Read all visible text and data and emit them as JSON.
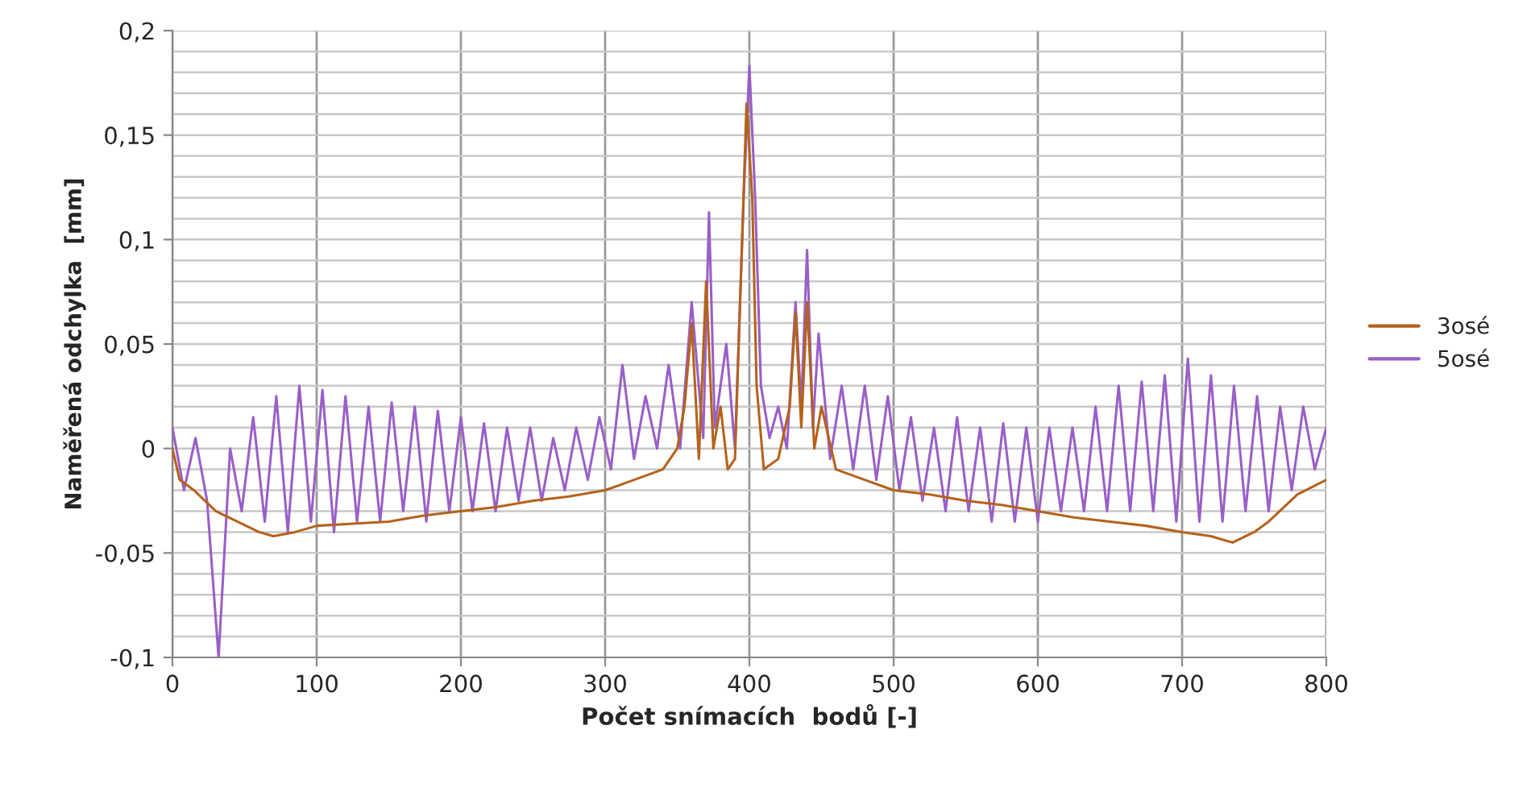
{
  "chart_data": {
    "type": "line",
    "xlabel": "Počet snímacích  bodů [-]",
    "ylabel": "Naměřená odchylka  [mm]",
    "xlim": [
      0,
      800
    ],
    "xticks": [
      0,
      100,
      200,
      300,
      400,
      500,
      600,
      700,
      800
    ],
    "ylim": [
      -0.1,
      0.2
    ],
    "yticks": [
      {
        "value": -0.1,
        "label": "-0,1"
      },
      {
        "value": -0.05,
        "label": "-0,05"
      },
      {
        "value": 0,
        "label": "0"
      },
      {
        "value": 0.05,
        "label": "0,05"
      },
      {
        "value": 0.1,
        "label": "0,1"
      },
      {
        "value": 0.15,
        "label": "0,15"
      },
      {
        "value": 0.2,
        "label": "0,2"
      }
    ],
    "grid": true,
    "legend": "right",
    "marker": "none",
    "line_style": "solid",
    "series": [
      {
        "name": "3osé",
        "color": "#b5621b",
        "x": [
          0,
          5,
          15,
          30,
          45,
          60,
          70,
          85,
          100,
          125,
          150,
          175,
          200,
          225,
          250,
          275,
          300,
          320,
          340,
          350,
          355,
          360,
          365,
          370,
          375,
          380,
          385,
          390,
          395,
          398,
          402,
          405,
          410,
          420,
          428,
          432,
          436,
          440,
          445,
          450,
          460,
          480,
          500,
          525,
          550,
          575,
          600,
          625,
          650,
          675,
          700,
          720,
          735,
          750,
          760,
          780,
          800
        ],
        "values": [
          0,
          -0.015,
          -0.02,
          -0.03,
          -0.035,
          -0.04,
          -0.042,
          -0.04,
          -0.037,
          -0.036,
          -0.035,
          -0.032,
          -0.03,
          -0.028,
          -0.025,
          -0.023,
          -0.02,
          -0.015,
          -0.01,
          0.0,
          0.02,
          0.06,
          -0.005,
          0.08,
          0.0,
          0.02,
          -0.01,
          -0.005,
          0.1,
          0.165,
          0.12,
          0.03,
          -0.01,
          -0.005,
          0.02,
          0.065,
          0.01,
          0.07,
          0.0,
          0.02,
          -0.01,
          -0.015,
          -0.02,
          -0.022,
          -0.025,
          -0.027,
          -0.03,
          -0.033,
          -0.035,
          -0.037,
          -0.04,
          -0.042,
          -0.045,
          -0.04,
          -0.035,
          -0.022,
          -0.015
        ]
      },
      {
        "name": "5osé",
        "color": "#9a5fc7",
        "x": [
          0,
          8,
          16,
          24,
          32,
          40,
          48,
          56,
          64,
          72,
          80,
          88,
          96,
          104,
          112,
          120,
          128,
          136,
          144,
          152,
          160,
          168,
          176,
          184,
          192,
          200,
          208,
          216,
          224,
          232,
          240,
          248,
          256,
          264,
          272,
          280,
          288,
          296,
          304,
          312,
          320,
          328,
          336,
          344,
          352,
          360,
          368,
          372,
          376,
          384,
          390,
          396,
          400,
          404,
          408,
          414,
          420,
          426,
          432,
          436,
          440,
          444,
          448,
          456,
          464,
          472,
          480,
          488,
          496,
          504,
          512,
          520,
          528,
          536,
          544,
          552,
          560,
          568,
          576,
          584,
          592,
          600,
          608,
          616,
          624,
          632,
          640,
          648,
          656,
          664,
          672,
          680,
          688,
          696,
          704,
          712,
          720,
          728,
          736,
          744,
          752,
          760,
          768,
          776,
          784,
          792,
          800
        ],
        "values": [
          0.01,
          -0.02,
          0.005,
          -0.025,
          -0.1,
          0.0,
          -0.03,
          0.015,
          -0.035,
          0.025,
          -0.04,
          0.03,
          -0.035,
          0.028,
          -0.04,
          0.025,
          -0.035,
          0.02,
          -0.035,
          0.022,
          -0.03,
          0.02,
          -0.035,
          0.018,
          -0.03,
          0.015,
          -0.03,
          0.012,
          -0.03,
          0.01,
          -0.025,
          0.01,
          -0.025,
          0.005,
          -0.02,
          0.01,
          -0.015,
          0.015,
          -0.01,
          0.04,
          -0.005,
          0.025,
          0.0,
          0.04,
          0.0,
          0.07,
          0.005,
          0.113,
          0.01,
          0.05,
          0.0,
          0.12,
          0.183,
          0.12,
          0.03,
          0.005,
          0.02,
          0.0,
          0.07,
          0.02,
          0.095,
          0.01,
          0.055,
          -0.005,
          0.03,
          -0.01,
          0.03,
          -0.015,
          0.025,
          -0.02,
          0.015,
          -0.025,
          0.01,
          -0.03,
          0.015,
          -0.03,
          0.01,
          -0.035,
          0.012,
          -0.035,
          0.01,
          -0.035,
          0.01,
          -0.03,
          0.01,
          -0.03,
          0.02,
          -0.03,
          0.03,
          -0.03,
          0.032,
          -0.03,
          0.035,
          -0.035,
          0.043,
          -0.035,
          0.035,
          -0.035,
          0.03,
          -0.03,
          0.025,
          -0.03,
          0.02,
          -0.02,
          0.02,
          -0.01,
          0.01
        ]
      }
    ]
  }
}
